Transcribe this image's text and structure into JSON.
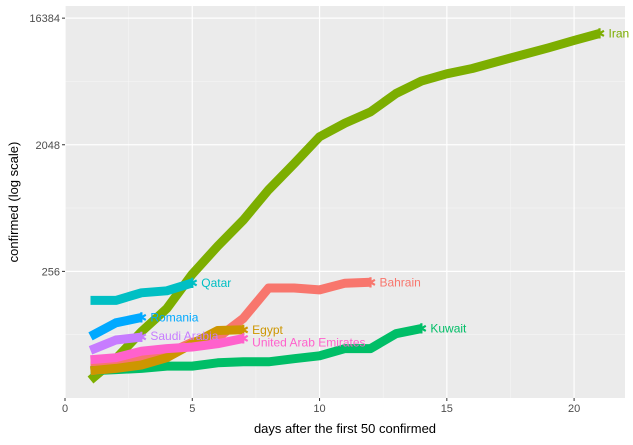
{
  "chart_data": {
    "type": "line",
    "title": "",
    "xlabel": "days after the first 50 confirmed",
    "ylabel": "confirmed  (log scale)",
    "x_scale": "linear",
    "y_scale": "log2",
    "xlim": [
      0,
      22
    ],
    "ylim": [
      32,
      20000
    ],
    "x_ticks": [
      0,
      5,
      10,
      15,
      20
    ],
    "y_ticks": [
      256,
      2048,
      16384
    ],
    "x_tick_labels": [
      "0",
      "5",
      "10",
      "15",
      "20"
    ],
    "y_tick_labels": [
      "256",
      "2048",
      "16384"
    ],
    "grid": true,
    "legend": "none (direct labels at line ends)",
    "series": [
      {
        "name": "Iran",
        "color": "#7cae00",
        "x": [
          1,
          2,
          3,
          4,
          5,
          6,
          7,
          8,
          9,
          10,
          11,
          12,
          13,
          14,
          15,
          16,
          17,
          18,
          19,
          20,
          21
        ],
        "y": [
          43,
          61,
          95,
          139,
          245,
          388,
          593,
          978,
          1501,
          2336,
          2922,
          3513,
          4747,
          5823,
          6566,
          7161,
          8042,
          9000,
          10075,
          11364,
          12729
        ]
      },
      {
        "name": "Bahrain",
        "color": "#f8766d",
        "x": [
          1,
          2,
          3,
          4,
          5,
          6,
          7,
          8,
          9,
          10,
          11,
          12
        ],
        "y": [
          56,
          56,
          60,
          66,
          80,
          86,
          118,
          195,
          195,
          189,
          211,
          214
        ]
      },
      {
        "name": "Kuwait",
        "color": "#00be67",
        "x": [
          1,
          2,
          3,
          4,
          5,
          6,
          7,
          8,
          9,
          10,
          11,
          12,
          13,
          14
        ],
        "y": [
          50,
          51,
          52,
          54,
          54,
          57,
          58,
          58,
          61,
          64,
          72,
          72,
          92,
          100
        ]
      },
      {
        "name": "Qatar",
        "color": "#00bfc4",
        "x": [
          1,
          2,
          3,
          4,
          5
        ],
        "y": [
          159,
          159,
          180,
          186,
          212
        ]
      },
      {
        "name": "Romania",
        "color": "#00a9ff",
        "x": [
          1,
          2,
          3
        ],
        "y": [
          88,
          110,
          120
        ]
      },
      {
        "name": "Egypt",
        "color": "#cd9600",
        "x": [
          1,
          2,
          3,
          4,
          5,
          6,
          7
        ],
        "y": [
          50,
          52,
          55,
          62,
          78,
          97,
          98
        ]
      },
      {
        "name": "Saudi Arabia",
        "color": "#c77cff",
        "x": [
          1,
          2,
          3
        ],
        "y": [
          70,
          83,
          87
        ]
      },
      {
        "name": "United Arab Emirates",
        "color": "#ff61cc",
        "x": [
          1,
          2,
          3,
          4,
          5,
          6,
          7
        ],
        "y": [
          60,
          62,
          69,
          72,
          74,
          78,
          85
        ]
      }
    ]
  }
}
